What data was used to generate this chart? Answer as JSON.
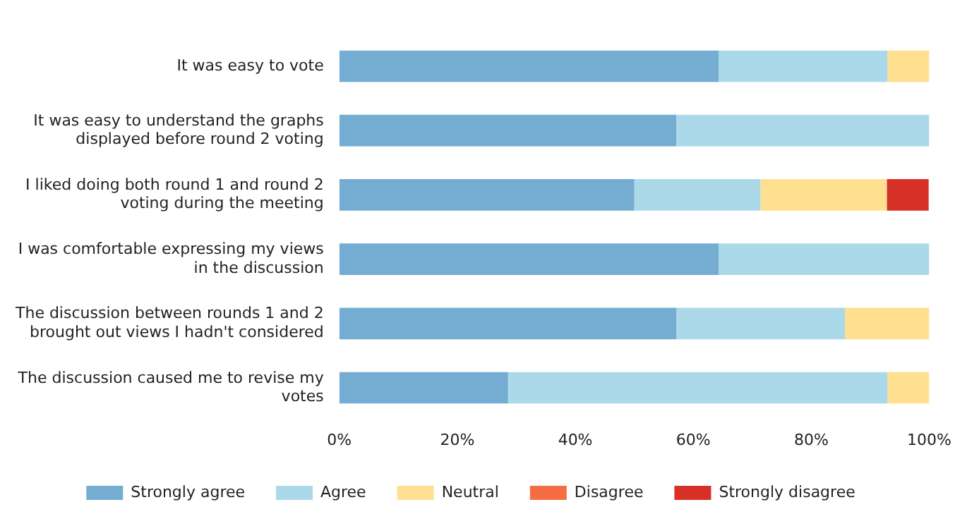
{
  "chart_data": {
    "type": "bar",
    "orientation": "horizontal",
    "stacked": true,
    "categories": [
      "It was easy to vote",
      "It was easy to understand the graphs displayed before round 2 voting",
      "I liked doing both round 1 and round 2 voting during the meeting",
      "I was comfortable expressing my views in the discussion",
      "The discussion between rounds 1 and 2 brought out views I hadn't considered",
      "The discussion caused me to revise my votes"
    ],
    "series": [
      {
        "name": "Strongly agree",
        "color": "#74add1",
        "values": [
          64.3,
          57.1,
          50,
          64.3,
          57.1,
          28.6
        ]
      },
      {
        "name": "Agree",
        "color": "#abd9e9",
        "values": [
          28.6,
          42.9,
          21.4,
          35.7,
          28.6,
          64.3
        ]
      },
      {
        "name": "Neutral",
        "color": "#fee090",
        "values": [
          7.1,
          0,
          21.4,
          0,
          14.3,
          7.1
        ]
      },
      {
        "name": "Disagree",
        "color": "#f46d43",
        "values": [
          0,
          0,
          0,
          0,
          0,
          0
        ]
      },
      {
        "name": "Strongly disagree",
        "color": "#d73027",
        "values": [
          0,
          0,
          7.1,
          0,
          0,
          0
        ]
      }
    ],
    "xlim": [
      0,
      100
    ],
    "xticks": [
      {
        "value": 0,
        "label": "0%"
      },
      {
        "value": 20,
        "label": "20%"
      },
      {
        "value": 40,
        "label": "40%"
      },
      {
        "value": 60,
        "label": "60%"
      },
      {
        "value": 80,
        "label": "80%"
      },
      {
        "value": 100,
        "label": "100%"
      }
    ],
    "grid": false,
    "legend": "bottom"
  }
}
